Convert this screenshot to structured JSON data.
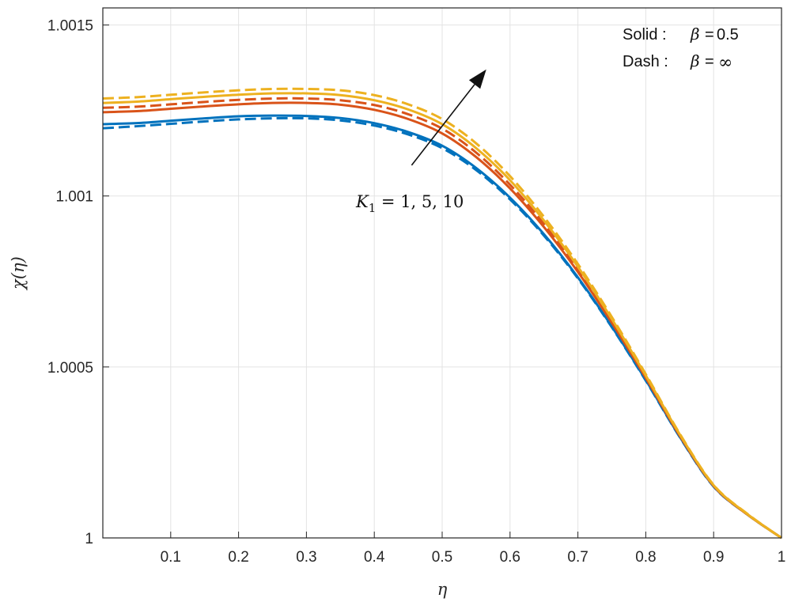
{
  "chart_data": {
    "type": "line",
    "title": "",
    "xlabel": "η",
    "ylabel": "χ(η)",
    "xlim": [
      0,
      1
    ],
    "ylim": [
      1.0,
      1.00155
    ],
    "x_ticks": [
      0.1,
      0.2,
      0.3,
      0.4,
      0.5,
      0.6,
      0.7,
      0.8,
      0.9,
      1
    ],
    "x_tick_labels": [
      "0.1",
      "0.2",
      "0.3",
      "0.4",
      "0.5",
      "0.6",
      "0.7",
      "0.8",
      "0.9",
      "1"
    ],
    "y_ticks": [
      1.0,
      1.0005,
      1.001,
      1.0015
    ],
    "y_tick_labels": [
      "1",
      "1.0005",
      "1.001",
      "1.0015"
    ],
    "grid": true,
    "x": [
      0.0,
      0.05,
      0.1,
      0.15,
      0.2,
      0.25,
      0.3,
      0.35,
      0.4,
      0.45,
      0.5,
      0.55,
      0.6,
      0.65,
      0.7,
      0.75,
      0.8,
      0.85,
      0.9,
      0.95,
      1.0
    ],
    "series": [
      {
        "color": "#0072bd",
        "dash": false,
        "values": [
          1.00121,
          1.001213,
          1.00122,
          1.001227,
          1.001233,
          1.001235,
          1.001234,
          1.001228,
          1.001213,
          1.001187,
          1.001147,
          1.001082,
          1.000995,
          1.000888,
          1.000762,
          1.000618,
          1.000462,
          1.000296,
          1.000151,
          1.000068,
          1.0
        ]
      },
      {
        "color": "#0072bd",
        "dash": true,
        "values": [
          1.001198,
          1.001204,
          1.001211,
          1.001218,
          1.001224,
          1.001227,
          1.001227,
          1.001221,
          1.001206,
          1.00118,
          1.00114,
          1.001076,
          1.00099,
          1.000884,
          1.000759,
          1.000616,
          1.00046,
          1.000295,
          1.00015,
          1.000068,
          1.0
        ]
      },
      {
        "color": "#d95319",
        "dash": false,
        "values": [
          1.001245,
          1.001248,
          1.001255,
          1.001262,
          1.001268,
          1.001272,
          1.001272,
          1.001267,
          1.001252,
          1.001225,
          1.001183,
          1.001114,
          1.001022,
          1.000909,
          1.000778,
          1.000629,
          1.000468,
          1.000299,
          1.000152,
          1.000068,
          1.0
        ]
      },
      {
        "color": "#d95319",
        "dash": true,
        "values": [
          1.001258,
          1.001261,
          1.001268,
          1.001275,
          1.001281,
          1.001285,
          1.001285,
          1.00128,
          1.001266,
          1.001239,
          1.001197,
          1.001127,
          1.001033,
          1.000918,
          1.000785,
          1.000634,
          1.000471,
          1.000301,
          1.000153,
          1.000069,
          1.0
        ]
      },
      {
        "color": "#edb120",
        "dash": false,
        "values": [
          1.001272,
          1.001276,
          1.001283,
          1.00129,
          1.001296,
          1.0013,
          1.0013,
          1.001295,
          1.00128,
          1.001253,
          1.00121,
          1.00114,
          1.001046,
          1.000928,
          1.000793,
          1.00064,
          1.000475,
          1.000303,
          1.000154,
          1.000069,
          1.0
        ]
      },
      {
        "color": "#edb120",
        "dash": true,
        "values": [
          1.001285,
          1.001289,
          1.001296,
          1.001303,
          1.001309,
          1.001313,
          1.001313,
          1.001309,
          1.001295,
          1.001268,
          1.001225,
          1.001154,
          1.001058,
          1.000939,
          1.000801,
          1.000646,
          1.000479,
          1.000305,
          1.000155,
          1.00007,
          1.0
        ]
      }
    ],
    "legend": {
      "placement": "top-right",
      "entries": [
        {
          "style": "Solid :",
          "symbol": "β",
          "eq": "=",
          "value": "0.5"
        },
        {
          "style": "Dash :",
          "symbol": "β",
          "eq": "=",
          "value": "∞"
        }
      ]
    },
    "annotation": {
      "base": "K",
      "sub": "1",
      "rest": " = 1, 5, 10",
      "arrow_from": [
        0.455,
        1.00109
      ],
      "arrow_to": [
        0.565,
        1.00137
      ]
    }
  }
}
